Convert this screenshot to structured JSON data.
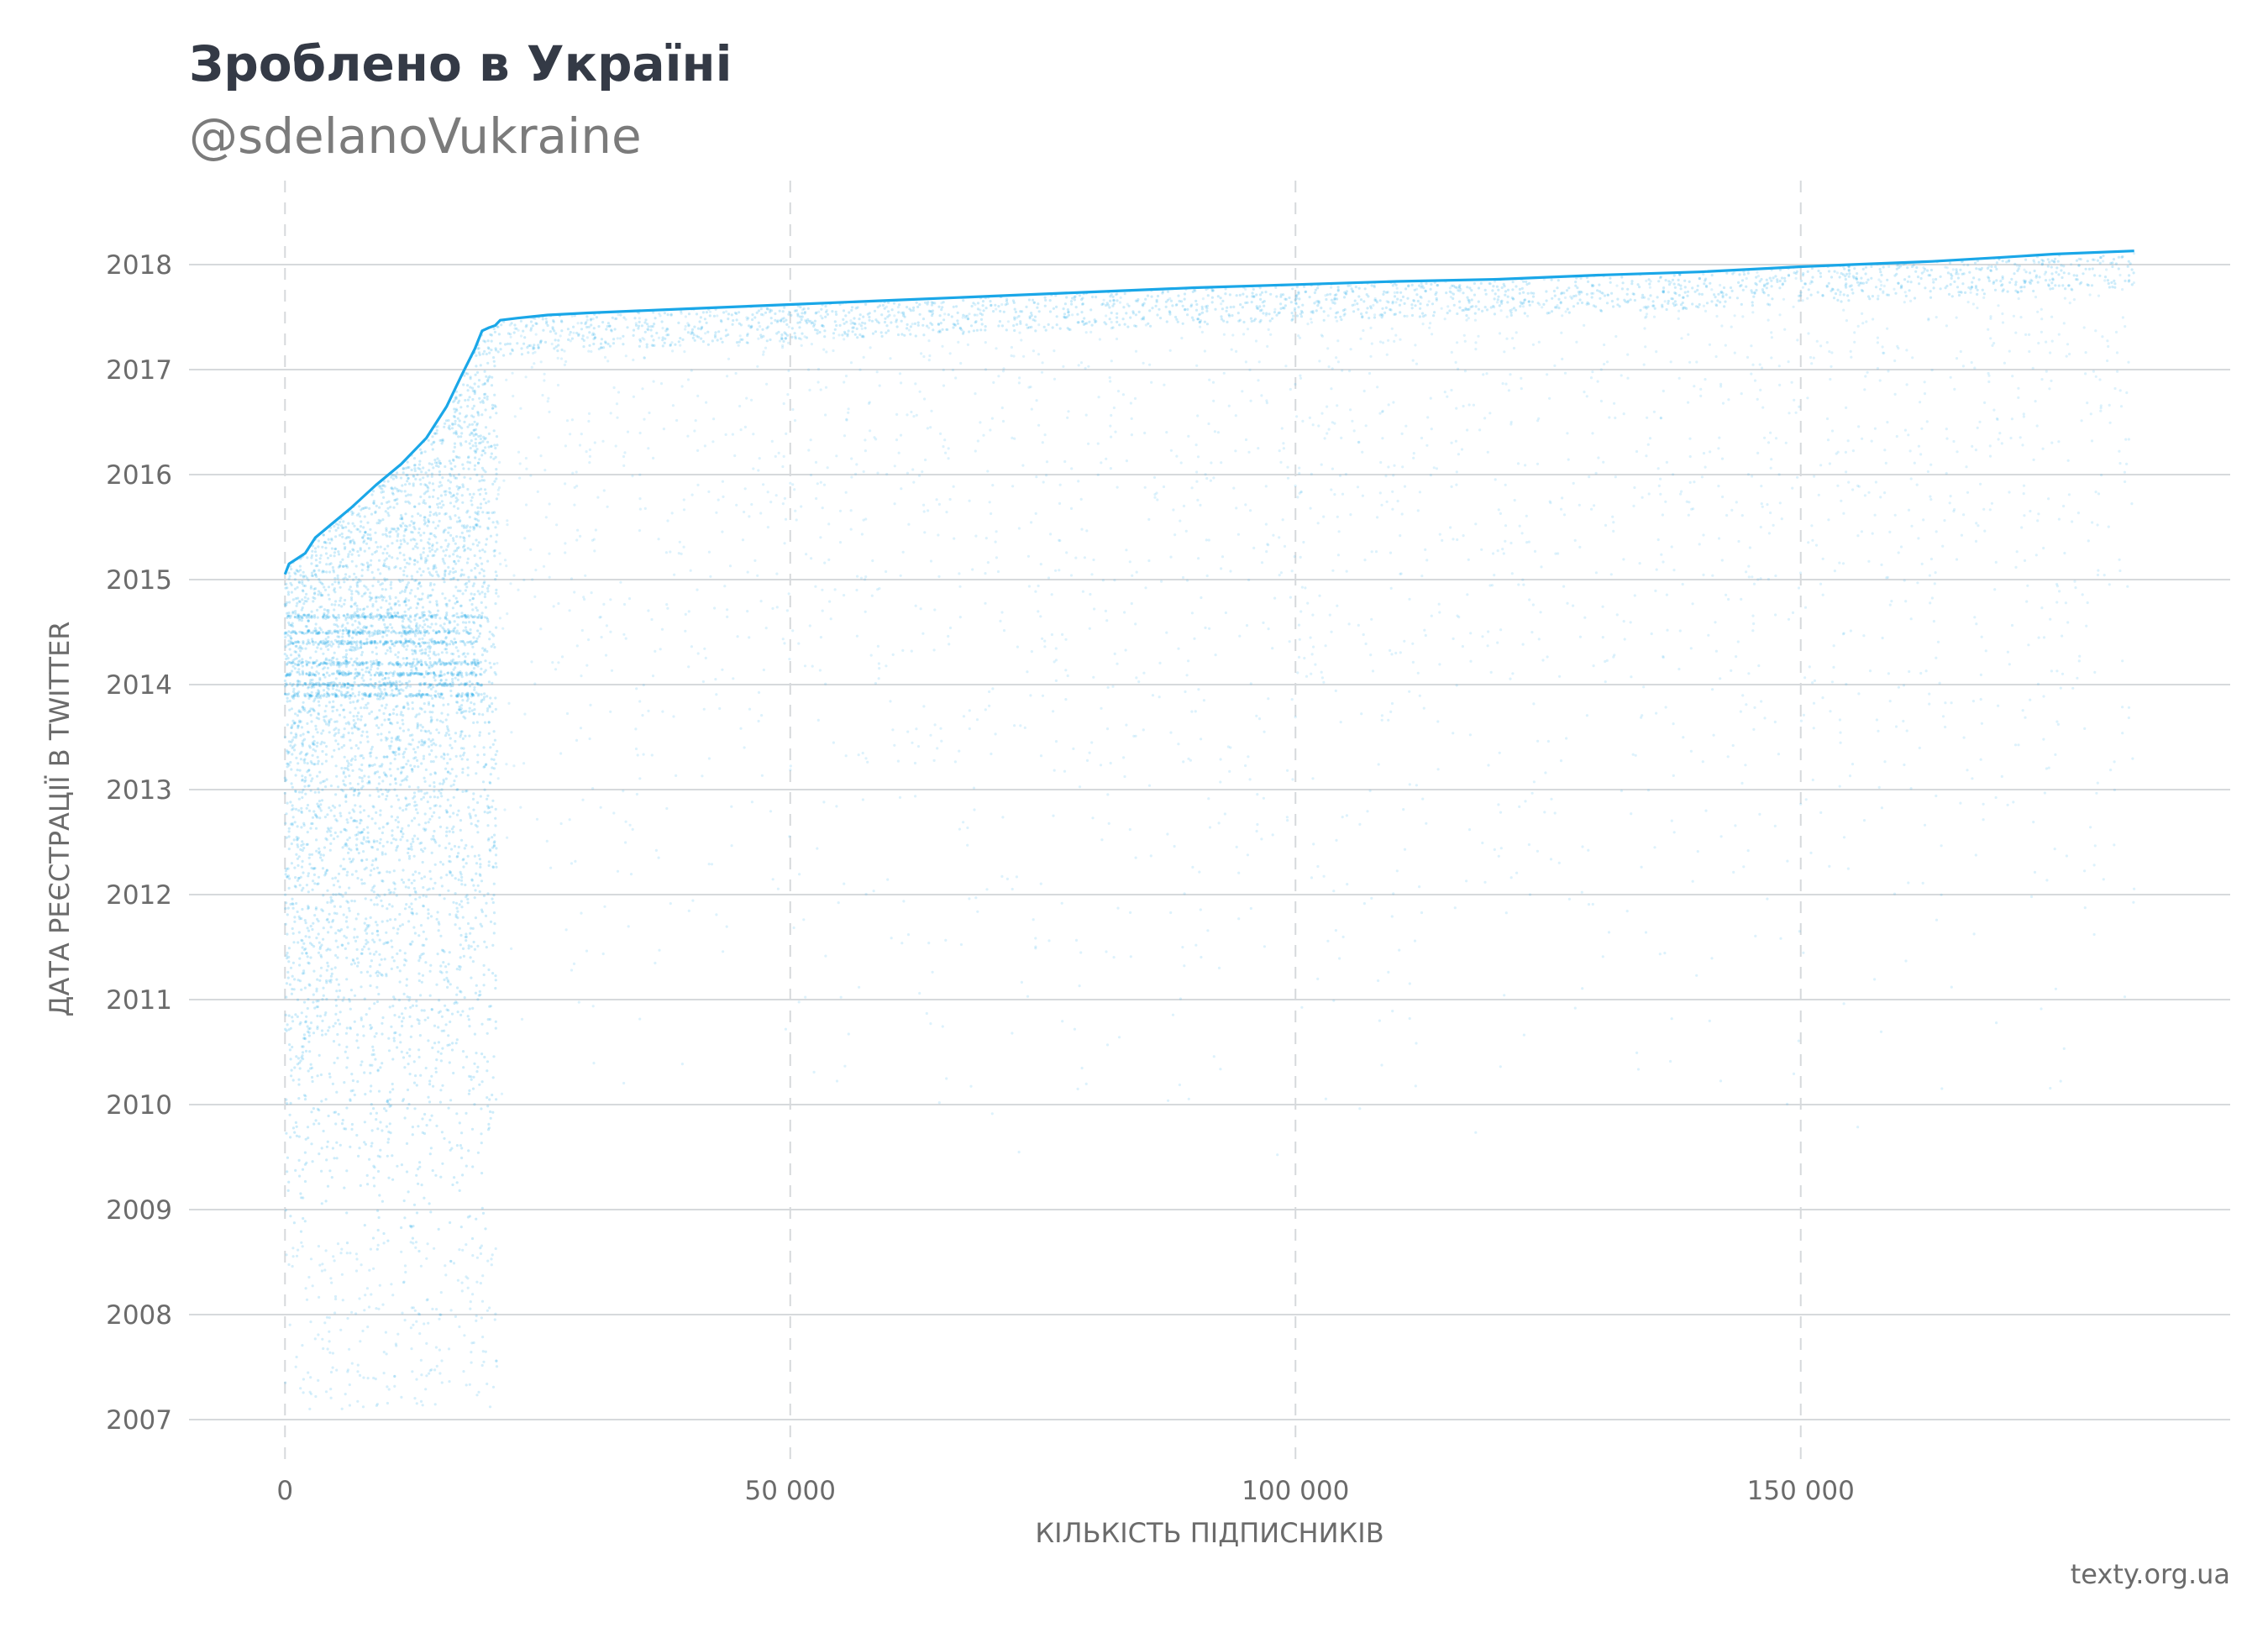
{
  "header": {
    "title": "Зроблено в Україні",
    "subtitle": "@sdelanoVukraine"
  },
  "footer": {
    "source": "texty.org.ua"
  },
  "colors": {
    "accent": "#1aa7e8",
    "grid": "#d6d9dc",
    "text": "#343a46",
    "muted": "#6b6b6b"
  },
  "chart_data": {
    "type": "scatter",
    "xlabel": "КІЛЬКІСТЬ ПІДПИСНИКІВ",
    "ylabel": "ДАТА РЕЄСТРАЦІЇ В TWITTER",
    "xlim": [
      -9500,
      192500
    ],
    "ylim": [
      2006.6,
      2018.8
    ],
    "x_ticks": [
      0,
      50000,
      100000,
      150000
    ],
    "x_tick_labels": [
      "0",
      "50 000",
      "100 000",
      "150 000"
    ],
    "y_ticks": [
      2007,
      2008,
      2009,
      2010,
      2011,
      2012,
      2013,
      2014,
      2015,
      2016,
      2017,
      2018
    ],
    "y_tick_labels": [
      "2007",
      "2008",
      "2009",
      "2010",
      "2011",
      "2012",
      "2013",
      "2014",
      "2015",
      "2016",
      "2017",
      "2018"
    ],
    "grid": {
      "horizontal": "solid",
      "vertical": "dashed"
    },
    "series": [
      {
        "kind": "line",
        "x": [
          0,
          400,
          1200,
          2000,
          3000,
          4500,
          6500,
          9000,
          11500,
          14000,
          16000,
          17500,
          18800,
          19500,
          20200,
          20800,
          21300,
          23000,
          26000,
          30000,
          40000,
          50000,
          60000,
          70000,
          80000,
          90000,
          100000,
          110000,
          120000,
          130000,
          140000,
          150000,
          155000,
          163000,
          170000,
          175000,
          183000
        ],
        "y": [
          2015.05,
          2015.15,
          2015.2,
          2015.25,
          2015.4,
          2015.52,
          2015.68,
          2015.9,
          2016.1,
          2016.35,
          2016.65,
          2016.95,
          2017.2,
          2017.37,
          2017.4,
          2017.42,
          2017.47,
          2017.49,
          2017.52,
          2017.54,
          2017.58,
          2017.62,
          2017.66,
          2017.7,
          2017.74,
          2017.78,
          2017.81,
          2017.84,
          2017.86,
          2017.9,
          2017.93,
          2017.98,
          2018.0,
          2018.03,
          2018.07,
          2018.1,
          2018.13
        ]
      }
    ]
  }
}
